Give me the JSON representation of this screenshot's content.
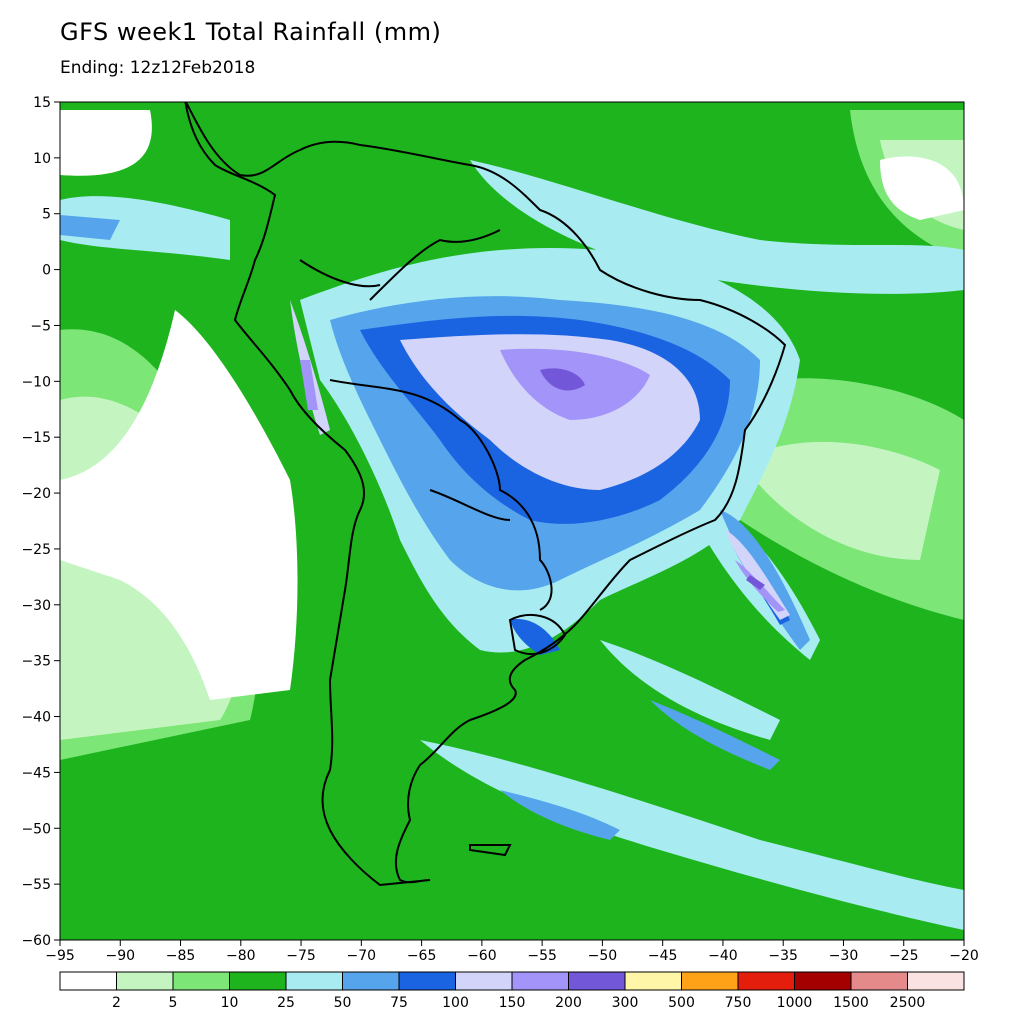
{
  "title": "GFS week1 Total Rainfall (mm)",
  "subtitle": "Ending: 12z12Feb2018",
  "map": {
    "lon_range": [
      -95,
      -20
    ],
    "lat_range": [
      -60,
      15
    ],
    "lon_ticks": [
      "−95",
      "−90",
      "−85",
      "−80",
      "−75",
      "−70",
      "−65",
      "−60",
      "−55",
      "−50",
      "−45",
      "−40",
      "−35",
      "−30",
      "−25",
      "−20"
    ],
    "lat_ticks": [
      "15",
      "10",
      "5",
      "0",
      "−5",
      "−10",
      "−15",
      "−20",
      "−25",
      "−30",
      "−35",
      "−40",
      "−45",
      "−50",
      "−55",
      "−60"
    ]
  },
  "legend": {
    "colors": [
      "#ffffff",
      "#c4f5c1",
      "#7ce677",
      "#1eb41e",
      "#a8ecf2",
      "#55a4ec",
      "#1a64e2",
      "#d2d4fa",
      "#a294f8",
      "#7258d8",
      "#fff6a8",
      "#ffa218",
      "#e41e0c",
      "#a40000",
      "#e48a8a",
      "#fae2e2"
    ],
    "labels": [
      "2",
      "5",
      "10",
      "25",
      "50",
      "75",
      "100",
      "150",
      "200",
      "300",
      "500",
      "750",
      "1000",
      "1500",
      "2500"
    ]
  }
}
